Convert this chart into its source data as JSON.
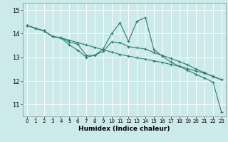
{
  "xlabel": "Humidex (Indice chaleur)",
  "bg_color": "#cceaea",
  "grid_color": "#ffffff",
  "line_color": "#2d7b6e",
  "xlim": [
    -0.5,
    23.5
  ],
  "ylim": [
    10.5,
    15.3
  ],
  "yticks": [
    11,
    12,
    13,
    14,
    15
  ],
  "xticks": [
    0,
    1,
    2,
    3,
    4,
    5,
    6,
    7,
    8,
    9,
    10,
    11,
    12,
    13,
    14,
    15,
    16,
    17,
    18,
    19,
    20,
    21,
    22,
    23
  ],
  "series1_x": [
    0,
    1,
    2,
    3,
    4,
    5,
    6,
    7,
    8,
    9,
    10,
    11,
    12,
    13,
    14,
    15,
    16,
    17,
    18,
    19,
    20,
    21,
    22,
    23
  ],
  "series1_y": [
    14.35,
    14.22,
    14.12,
    13.88,
    13.82,
    13.72,
    13.62,
    13.52,
    13.42,
    13.32,
    13.22,
    13.12,
    13.05,
    12.98,
    12.92,
    12.85,
    12.78,
    12.7,
    12.62,
    12.52,
    12.42,
    12.32,
    12.2,
    12.05
  ],
  "series2_x": [
    0,
    1,
    2,
    3,
    4,
    5,
    6,
    7,
    8,
    9,
    10,
    11,
    12,
    13,
    14,
    15,
    16,
    17,
    18,
    19,
    20,
    21,
    22,
    23
  ],
  "series2_y": [
    14.35,
    14.22,
    14.12,
    13.88,
    13.82,
    13.52,
    13.3,
    13.0,
    13.08,
    13.35,
    14.0,
    14.45,
    13.68,
    14.52,
    14.68,
    13.32,
    13.05,
    12.8,
    12.62,
    12.45,
    12.28,
    12.12,
    11.95,
    10.68
  ],
  "series3_x": [
    0,
    1,
    2,
    3,
    4,
    5,
    6,
    7,
    8,
    9,
    10,
    11,
    12,
    13,
    14,
    15,
    16,
    17,
    18,
    19,
    20,
    21,
    22,
    23
  ],
  "series3_y": [
    14.35,
    14.22,
    14.12,
    13.88,
    13.82,
    13.65,
    13.55,
    13.08,
    13.08,
    13.25,
    13.65,
    13.62,
    13.45,
    13.4,
    13.35,
    13.2,
    13.08,
    12.95,
    12.82,
    12.68,
    12.5,
    12.35,
    12.18,
    12.05
  ],
  "marker_size": 3.5,
  "line_width": 0.8,
  "xlabel_fontsize": 6.5,
  "xtick_fontsize": 5.0,
  "ytick_fontsize": 6.0
}
